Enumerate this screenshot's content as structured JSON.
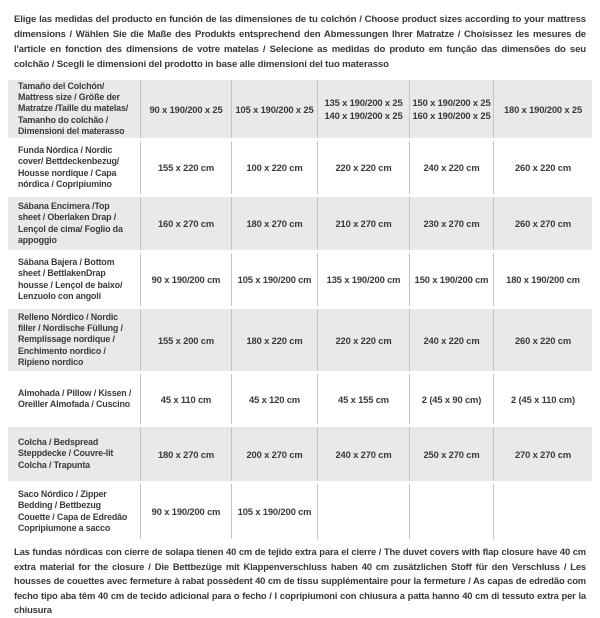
{
  "intro": "Elige las medidas del producto en función de las dimensiones de tu colchón / Choose product sizes according to your mattress dimensions / Wählen Sie die Maße des Produkts entsprechend den Abmessungen Ihrer Matratze / Choisissez les mesures de l'article en fonction des dimensions de votre matelas / Selecione as medidas do produto em função das dimensões do seu colchão / Scegli le dimensioni del prodotto in base alle dimensioni del tuo materasso",
  "table": {
    "rows": [
      {
        "label": "Tamaño del Colchón/ Mattress size / Größe der Matratze /Taille du matelas/ Tamanho do colchão / Dimensioni del materasso",
        "values": [
          "90 x 190/200 x 25",
          "105 x 190/200 x 25",
          "135 x 190/200 x 25\n140 x 190/200 x 25",
          "150 x 190/200 x 25\n160 x 190/200 x 25",
          "180 x 190/200 x 25"
        ]
      },
      {
        "label": "Funda Nórdica / Nordic cover/ Bettdeckenbezug/ Housse nordique / Capa nórdica / Copripiumino",
        "values": [
          "155 x 220 cm",
          "100 x 220 cm",
          "220 x 220 cm",
          "240 x 220 cm",
          "260 x 220 cm"
        ]
      },
      {
        "label": "Sábana Encimera /Top sheet / Oberlaken Drap / Lençol de cima/ Foglio da appoggio",
        "values": [
          "160 x 270 cm",
          "180 x 270 cm",
          "210 x 270 cm",
          "230 x 270 cm",
          "260 x 270 cm"
        ]
      },
      {
        "label": "Sábana Bajera / Bottom sheet / BettlakenDrap housse / Lençol de baixo/ Lenzuolo con angoli",
        "values": [
          "90 x 190/200 cm",
          "105 x 190/200 cm",
          "135 x 190/200 cm",
          "150 x 190/200 cm",
          "180 x 190/200 cm"
        ]
      },
      {
        "label": "Relleno Nórdico / Nordic filler / Nordische Füllung / Remplissage nordique / Enchimento nordico / Ripieno nordico",
        "values": [
          "155 x 200 cm",
          "180 x 220 cm",
          "220 x 220 cm",
          "240 x 220 cm",
          "260 x 220 cm"
        ]
      },
      {
        "label": "Almohada / Pillow / Kissen / Oreiller Almofada / Cuscino",
        "values": [
          "45 x 110 cm",
          "45 x 120 cm",
          "45 x 155 cm",
          "2 (45 x 90 cm)",
          "2 (45 x 110 cm)"
        ]
      },
      {
        "label": "Colcha / Bedspread Steppdecke / Couvre-lit Colcha / Trapunta",
        "values": [
          "180 x 270 cm",
          "200 x 270 cm",
          "240 x 270 cm",
          "250 x 270 cm",
          "270 x 270 cm"
        ]
      },
      {
        "label": "Saco Nórdico / Zipper Bedding / Bettbezug Couette / Capa de Edredão Copripiumone a sacco",
        "values": [
          "90 x 190/200 cm",
          "105 x 190/200 cm",
          "",
          "",
          ""
        ]
      }
    ]
  },
  "footnote": "Las fundas nórdicas con cierre de solapa tienen 40 cm de tejido extra para el cierre / The duvet covers with flap closure have 40 cm extra material for the closure / Die Bettbezüge mit Klappenverschluss haben 40 cm zusätzlichen Stoff für den Verschluss / Les housses de couettes avec fermeture à rabat possèdent 40 cm de tissu supplémentaire pour la fermeture / As capas de edredão com fecho tipo aba têm 40 cm de tecido adicional para o fecho / I copripiumoni con chiusura a patta hanno 40 cm di tessuto extra per la chiusura",
  "colors": {
    "row_shade": "#e9e9e9",
    "divider": "#c3c3c3",
    "text": "#3a3a3a"
  }
}
